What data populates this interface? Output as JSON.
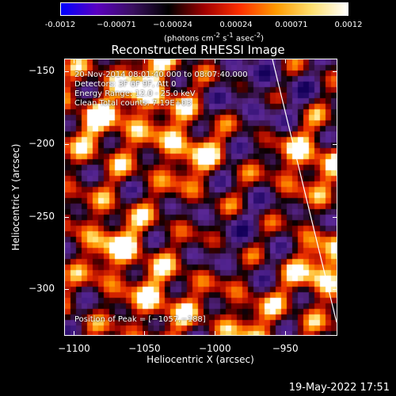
{
  "colorbar": {
    "tick_labels": [
      "-0.0012",
      "−0.00071",
      "−0.00024",
      "0.00024",
      "0.00071",
      "0.0012"
    ],
    "unit_label_parts": [
      "(photons cm",
      "-2",
      " s",
      "-1",
      " asec",
      "-2",
      ")"
    ],
    "colors": [
      "#0000ff",
      "#5a00c0",
      "#3a1060",
      "#000000",
      "#a00000",
      "#ff3000",
      "#ff9a00",
      "#ffe070",
      "#ffffff"
    ]
  },
  "title": "Reconstructed RHESSI Image",
  "annotations": {
    "time_range": "20-Nov-2014 08:01:40.000 to 08:07:40.000",
    "detectors": "Detectors: 3F 6F 9F, Att 0",
    "energy_range": "Energy Range: 12.0 - 25.0 keV",
    "clean_counts": "Clean    Total counts: 7.19E+03",
    "peak_position": "Position of Peak = [−1057,−188]"
  },
  "axes": {
    "xlabel": "Heliocentric X (arcsec)",
    "ylabel": "Heliocentric Y (arcsec)",
    "x_ticks": [
      {
        "value": -1100,
        "label": "−1100"
      },
      {
        "value": -1050,
        "label": "−1050"
      },
      {
        "value": -1000,
        "label": "−1000"
      },
      {
        "value": -950,
        "label": "−950"
      }
    ],
    "y_ticks": [
      {
        "value": -150,
        "label": "−150"
      },
      {
        "value": -200,
        "label": "−200"
      },
      {
        "value": -250,
        "label": "−250"
      },
      {
        "value": -300,
        "label": "−300"
      }
    ],
    "xlim": [
      -1107,
      -913
    ],
    "ylim": [
      -332,
      -141
    ]
  },
  "limb_color": "#ffffff",
  "timestamp": "19-May-2022 17:51"
}
